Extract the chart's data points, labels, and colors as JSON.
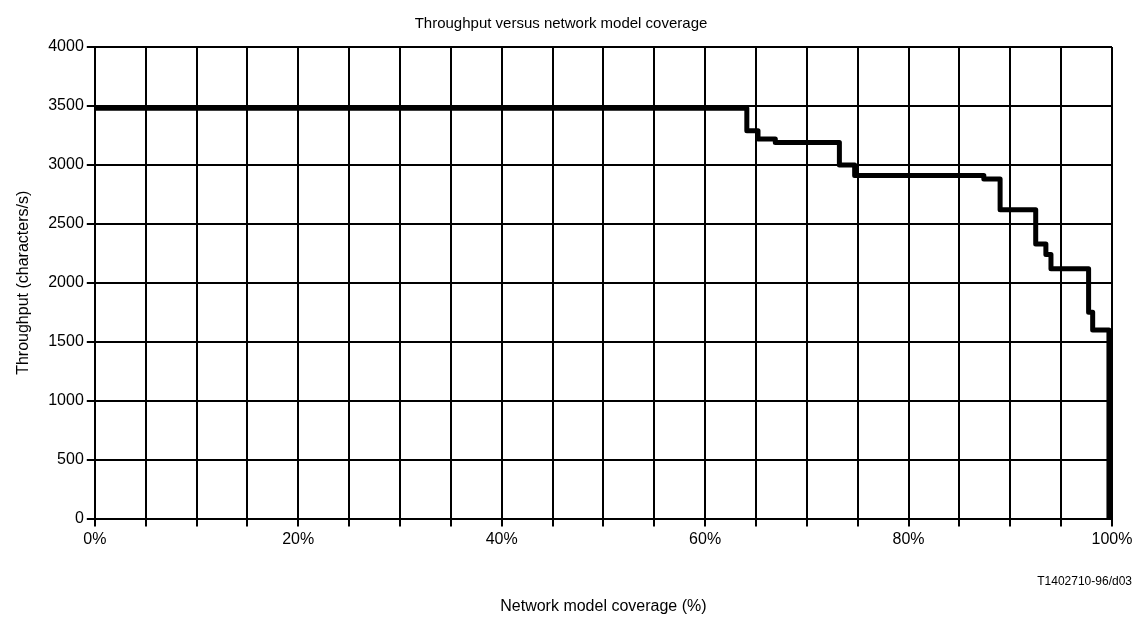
{
  "chart_data": {
    "type": "step",
    "title": "Throughput versus network model coverage",
    "xlabel": "Network model coverage (%)",
    "ylabel": "Throughput (characters/s)",
    "x": [
      0,
      64.1,
      65.2,
      66.9,
      73.2,
      74.7,
      87.4,
      89.0,
      92.5,
      93.5,
      94.0,
      97.7,
      98.1,
      99.7
    ],
    "series": [
      {
        "color": "#000000",
        "values": [
          3480,
          3290,
          3220,
          3190,
          3000,
          2910,
          2880,
          2620,
          2330,
          2240,
          2120,
          1750,
          1600,
          0
        ]
      }
    ],
    "xlim": [
      0,
      100
    ],
    "xticks": [
      {
        "value": 0,
        "label": "0%"
      },
      {
        "value": 5,
        "label": null
      },
      {
        "value": 10,
        "label": null
      },
      {
        "value": 15,
        "label": null
      },
      {
        "value": 20,
        "label": "20%"
      },
      {
        "value": 25,
        "label": null
      },
      {
        "value": 30,
        "label": null
      },
      {
        "value": 35,
        "label": null
      },
      {
        "value": 40,
        "label": "40%"
      },
      {
        "value": 45,
        "label": null
      },
      {
        "value": 50,
        "label": null
      },
      {
        "value": 55,
        "label": null
      },
      {
        "value": 60,
        "label": "60%"
      },
      {
        "value": 65,
        "label": null
      },
      {
        "value": 70,
        "label": null
      },
      {
        "value": 75,
        "label": null
      },
      {
        "value": 80,
        "label": "80%"
      },
      {
        "value": 85,
        "label": null
      },
      {
        "value": 90,
        "label": null
      },
      {
        "value": 95,
        "label": null
      },
      {
        "value": 100,
        "label": "100%"
      }
    ],
    "ylim": [
      0,
      4000
    ],
    "yticks": [
      0,
      500,
      1000,
      1500,
      2000,
      2500,
      3000,
      3500,
      4000
    ],
    "grid": true,
    "legend": false,
    "marker": "none",
    "line_style": "solid",
    "annotations": [
      "T1402710-96/d03"
    ]
  }
}
